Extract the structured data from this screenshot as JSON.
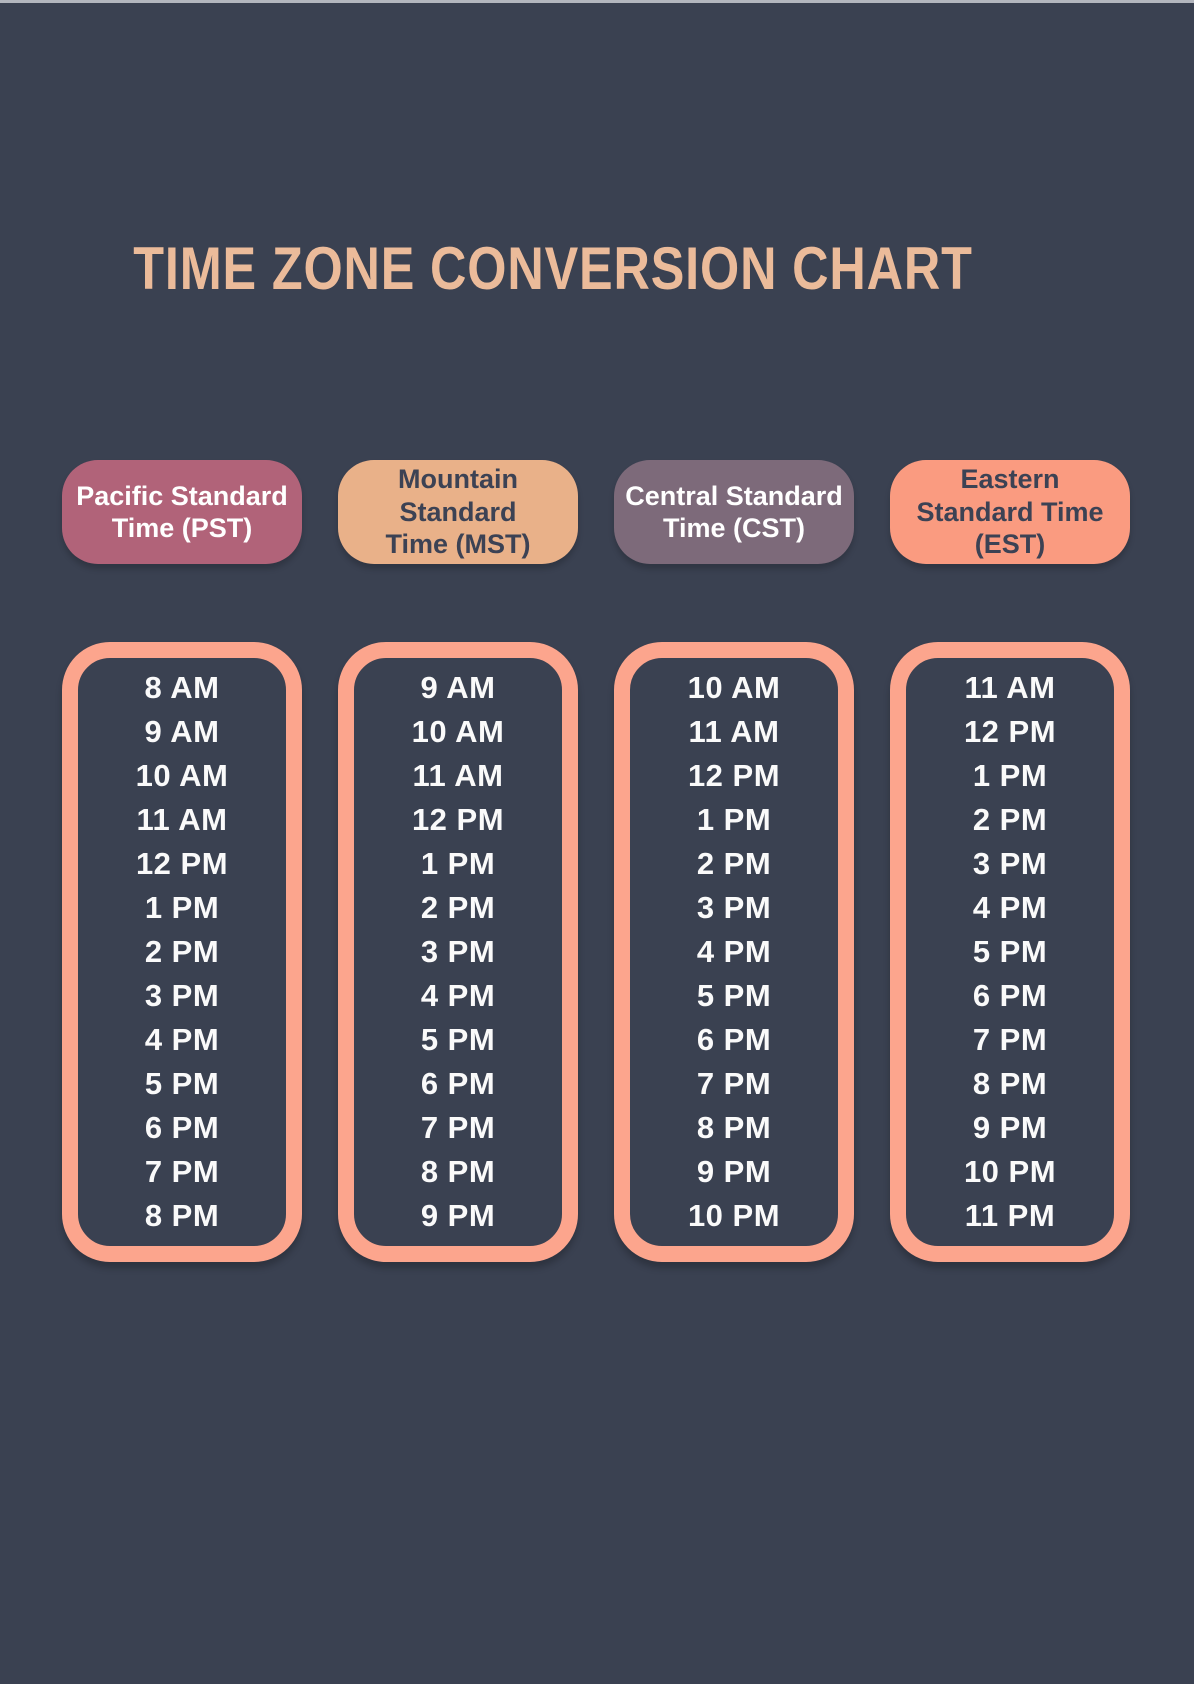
{
  "page": {
    "title": "TIME ZONE CONVERSION CHART",
    "background_color": "#3A4151",
    "title_color": "#EBBB9A",
    "column_border_color": "#FCA58D",
    "time_text_color": "#FAFAFA",
    "top_strip_color": "#B3B6BE"
  },
  "zones": [
    {
      "id": "pst",
      "label": "Pacific Standard\nTime (PST)",
      "pill_color": "#B16379",
      "text_color": "#FFFFFF",
      "times": [
        "8 AM",
        "9 AM",
        "10 AM",
        "11 AM",
        "12 PM",
        "1 PM",
        "2 PM",
        "3 PM",
        "4 PM",
        "5 PM",
        "6 PM",
        "7 PM",
        "8 PM"
      ]
    },
    {
      "id": "mst",
      "label": "Mountain Standard\nTime (MST)",
      "pill_color": "#E9B189",
      "text_color": "#3C4254",
      "times": [
        "9 AM",
        "10 AM",
        "11 AM",
        "12 PM",
        "1 PM",
        "2 PM",
        "3 PM",
        "4 PM",
        "5 PM",
        "6 PM",
        "7 PM",
        "8 PM",
        "9 PM"
      ]
    },
    {
      "id": "cst",
      "label": "Central Standard\nTime (CST)",
      "pill_color": "#7D6A7A",
      "text_color": "#FFFFFF",
      "times": [
        "10 AM",
        "11 AM",
        "12 PM",
        "1 PM",
        "2 PM",
        "3 PM",
        "4 PM",
        "5 PM",
        "6 PM",
        "7 PM",
        "8 PM",
        "9 PM",
        "10 PM"
      ]
    },
    {
      "id": "est",
      "label": "Eastern\nStandard Time\n(EST)",
      "pill_color": "#FA9B80",
      "text_color": "#3C4254",
      "times": [
        "11 AM",
        "12 PM",
        "1 PM",
        "2 PM",
        "3 PM",
        "4 PM",
        "5 PM",
        "6 PM",
        "7 PM",
        "8 PM",
        "9 PM",
        "10 PM",
        "11 PM"
      ]
    }
  ],
  "chart_data": {
    "type": "table",
    "title": "TIME ZONE CONVERSION CHART",
    "columns": [
      "Pacific Standard Time (PST)",
      "Mountain Standard Time (MST)",
      "Central Standard Time (CST)",
      "Eastern Standard Time (EST)"
    ],
    "rows": [
      [
        "8 AM",
        "9 AM",
        "10 AM",
        "11 AM"
      ],
      [
        "9 AM",
        "10 AM",
        "11 AM",
        "12 PM"
      ],
      [
        "10 AM",
        "11 AM",
        "12 PM",
        "1 PM"
      ],
      [
        "11 AM",
        "12 PM",
        "1 PM",
        "2 PM"
      ],
      [
        "12 PM",
        "1 PM",
        "2 PM",
        "3 PM"
      ],
      [
        "1 PM",
        "2 PM",
        "3 PM",
        "4 PM"
      ],
      [
        "2 PM",
        "3 PM",
        "4 PM",
        "5 PM"
      ],
      [
        "3 PM",
        "4 PM",
        "5 PM",
        "6 PM"
      ],
      [
        "4 PM",
        "5 PM",
        "6 PM",
        "7 PM"
      ],
      [
        "5 PM",
        "6 PM",
        "7 PM",
        "8 PM"
      ],
      [
        "6 PM",
        "7 PM",
        "8 PM",
        "9 PM"
      ],
      [
        "7 PM",
        "8 PM",
        "9 PM",
        "10 PM"
      ],
      [
        "8 PM",
        "9 PM",
        "10 PM",
        "11 PM"
      ]
    ],
    "legend_position": "none",
    "grid": false
  }
}
